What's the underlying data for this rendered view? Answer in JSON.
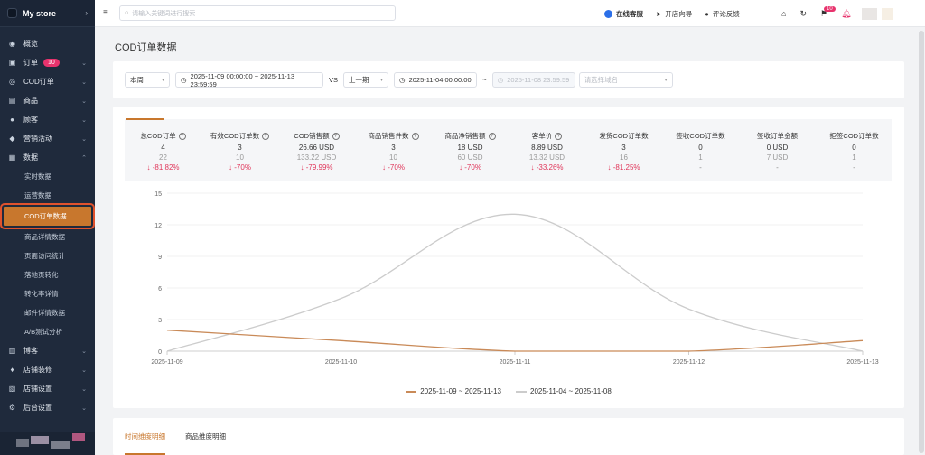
{
  "sidebar": {
    "store_name": "My store",
    "items": [
      {
        "label": "概览",
        "icon": "home-icon"
      },
      {
        "label": "订单",
        "icon": "order-icon",
        "badge": "10"
      },
      {
        "label": "COD订单",
        "icon": "cod-icon"
      },
      {
        "label": "商品",
        "icon": "goods-icon"
      },
      {
        "label": "顾客",
        "icon": "user-icon"
      },
      {
        "label": "营销活动",
        "icon": "tag-icon"
      },
      {
        "label": "数据",
        "icon": "data-icon"
      }
    ],
    "data_sub": [
      "实时数据",
      "运营数据",
      "COD订单数据",
      "商品详情数据",
      "页面访问统计",
      "落地页转化",
      "转化率详情",
      "邮件详情数据",
      "A/B测试分析"
    ],
    "items2": [
      {
        "label": "博客",
        "icon": "blog-icon"
      },
      {
        "label": "店铺装修",
        "icon": "paint-icon"
      },
      {
        "label": "店铺设置",
        "icon": "settings-icon"
      },
      {
        "label": "后台设置",
        "icon": "admin-icon"
      }
    ]
  },
  "topbar": {
    "search_placeholder": "请输入关键词进行搜索",
    "online_service": "在线客服",
    "guide": "开店向导",
    "feedback": "评论反馈",
    "notice_badge": "10"
  },
  "page": {
    "title": "COD订单数据"
  },
  "filters": {
    "period": "本周",
    "range_current": "2025-11-09 00:00:00 ~ 2025-11-13 23:59:59",
    "vs": "VS",
    "compare": "上一期",
    "compare_start": "2025-11-04 00:00:00",
    "tilde": "~",
    "compare_end": "2025-11-08 23:59:59",
    "domain_placeholder": "请选择域名"
  },
  "stats": [
    {
      "title": "总COD订单",
      "help": true,
      "current": "4",
      "previous": "22",
      "change": "-81.82%"
    },
    {
      "title": "有效COD订单数",
      "help": true,
      "current": "3",
      "previous": "10",
      "change": "-70%"
    },
    {
      "title": "COD销售额",
      "help": true,
      "current": "26.66 USD",
      "previous": "133.22 USD",
      "change": "-79.99%"
    },
    {
      "title": "商品销售件数",
      "help": true,
      "current": "3",
      "previous": "10",
      "change": "-70%"
    },
    {
      "title": "商品净销售额",
      "help": true,
      "current": "18 USD",
      "previous": "60 USD",
      "change": "-70%"
    },
    {
      "title": "客单价",
      "help": true,
      "current": "8.89 USD",
      "previous": "13.32 USD",
      "change": "-33.26%"
    },
    {
      "title": "发货COD订单数",
      "help": false,
      "current": "3",
      "previous": "16",
      "change": "-81.25%"
    },
    {
      "title": "签收COD订单数",
      "help": false,
      "current": "0",
      "previous": "1",
      "change": "-"
    },
    {
      "title": "签收订单金额",
      "help": false,
      "current": "0 USD",
      "previous": "7 USD",
      "change": "-"
    },
    {
      "title": "拒签COD订单数",
      "help": false,
      "current": "0",
      "previous": "1",
      "change": "-"
    }
  ],
  "chart_data": {
    "type": "line",
    "x": [
      "2025-11-09",
      "2025-11-10",
      "2025-11-11",
      "2025-11-12",
      "2025-11-13"
    ],
    "yticks": [
      0,
      3,
      6,
      9,
      12,
      15
    ],
    "ylim": [
      0,
      15
    ],
    "grid": true,
    "legend_position": "bottom-center",
    "series": [
      {
        "name": "2025-11-09 ~ 2025-11-13",
        "color": "#c98a58",
        "values": [
          2,
          1,
          0,
          0,
          1
        ]
      },
      {
        "name": "2025-11-04 ~ 2025-11-08",
        "color": "#cccccc",
        "values": [
          0,
          5,
          13,
          4,
          0
        ]
      }
    ]
  },
  "tabs": [
    "时间维度明细",
    "商品维度明细"
  ]
}
